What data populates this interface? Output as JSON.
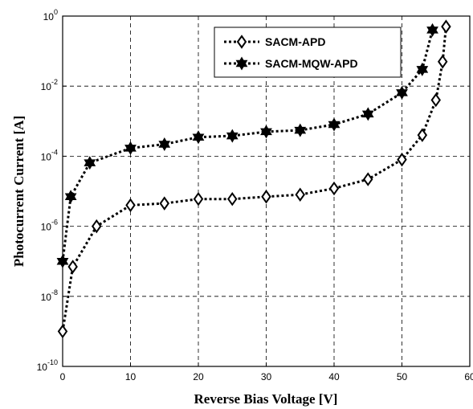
{
  "chart_data": {
    "type": "line",
    "title": "",
    "xlabel": "Reverse Bias Voltage [V]",
    "ylabel": "Photocurrent Current [A]",
    "xlim": [
      0,
      60
    ],
    "ylim_exponent": [
      -10,
      0
    ],
    "yscale": "log",
    "grid": true,
    "legend_position": "top-right",
    "x_ticks": [
      "0",
      "10",
      "20",
      "30",
      "40",
      "50",
      "60"
    ],
    "y_ticks": [
      {
        "base": "10",
        "exp": "0",
        "value": 0
      },
      {
        "base": "10",
        "exp": "-2",
        "value": -2
      },
      {
        "base": "10",
        "exp": "-4",
        "value": -4
      },
      {
        "base": "10",
        "exp": "-6",
        "value": -6
      },
      {
        "base": "10",
        "exp": "-8",
        "value": -8
      },
      {
        "base": "10",
        "exp": "-10",
        "value": -10
      }
    ],
    "series": [
      {
        "name": "SACM-APD",
        "marker": "diamond",
        "points": [
          [
            0,
            1e-09
          ],
          [
            1.5,
            7e-08
          ],
          [
            5,
            1e-06
          ],
          [
            10,
            4e-06
          ],
          [
            15,
            4.5e-06
          ],
          [
            20,
            6e-06
          ],
          [
            25,
            6e-06
          ],
          [
            30,
            7e-06
          ],
          [
            35,
            8e-06
          ],
          [
            40,
            1.2e-05
          ],
          [
            45,
            2.2e-05
          ],
          [
            50,
            8e-05
          ],
          [
            53,
            0.0004
          ],
          [
            55,
            0.004
          ],
          [
            56,
            0.05
          ],
          [
            56.5,
            0.5
          ]
        ]
      },
      {
        "name": "SACM-MQW-APD",
        "marker": "star",
        "points": [
          [
            0,
            1e-07
          ],
          [
            1.2,
            7e-06
          ],
          [
            4,
            6.5e-05
          ],
          [
            10,
            0.00017
          ],
          [
            15,
            0.00022
          ],
          [
            20,
            0.00035
          ],
          [
            25,
            0.00038
          ],
          [
            30,
            0.0005
          ],
          [
            35,
            0.00055
          ],
          [
            40,
            0.0008
          ],
          [
            45,
            0.0016
          ],
          [
            50,
            0.0065
          ],
          [
            53,
            0.03
          ],
          [
            54.5,
            0.4
          ]
        ]
      }
    ]
  }
}
